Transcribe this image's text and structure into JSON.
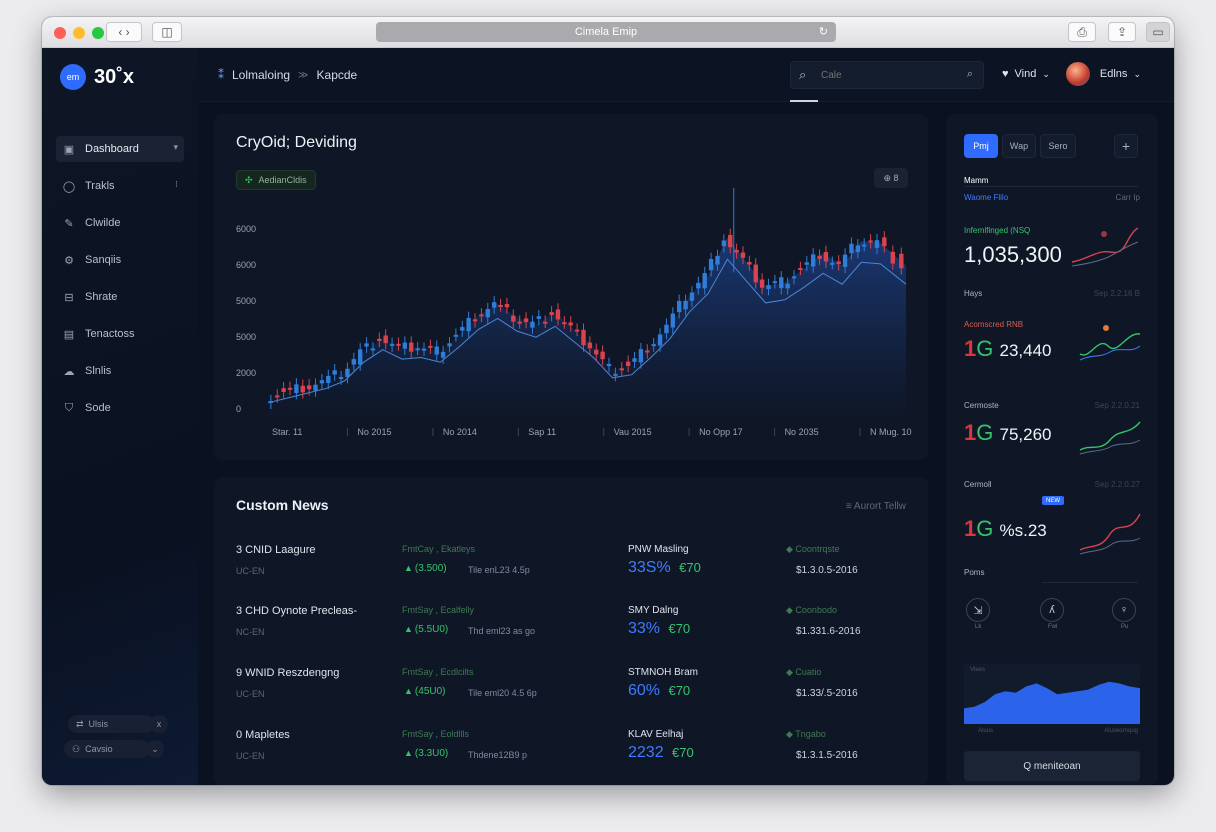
{
  "browser": {
    "url": "Cimela Emip",
    "colors": {
      "red": "#ff5f57",
      "yellow": "#febc2e",
      "green": "#28c840"
    }
  },
  "sidebar": {
    "logo_mark": "em",
    "logo_text": "30˚x",
    "items": [
      {
        "label": "Dashboard",
        "icon": "dashboard-icon",
        "trail": "▾"
      },
      {
        "label": "Trakls",
        "icon": "chat-icon",
        "trail": "⁝"
      },
      {
        "label": "Clwilde",
        "icon": "pen-icon",
        "trail": ""
      },
      {
        "label": "Sanqiis",
        "icon": "gear-icon",
        "trail": ""
      },
      {
        "label": "Shrate",
        "icon": "inbox-icon",
        "trail": ""
      },
      {
        "label": "Tenactoss",
        "icon": "file-icon",
        "trail": ""
      },
      {
        "label": "Slnlis",
        "icon": "cloud-icon",
        "trail": ""
      },
      {
        "label": "Sode",
        "icon": "shield-icon",
        "trail": ""
      }
    ],
    "footer": [
      {
        "label": "Ulsis",
        "icon": "swap-icon",
        "trail": "x"
      },
      {
        "label": "Cavsio",
        "icon": "users-icon",
        "trail": "⌄"
      }
    ]
  },
  "header": {
    "breadcrumb": [
      "Lolmaloing",
      "Kapcde"
    ],
    "search_placeholder": "Cale",
    "notif_label": "Vind",
    "user_name": "Edlns"
  },
  "chart_panel": {
    "title": "CryOid; Deviding",
    "chip_label": "AedianCldis",
    "corner_label": "⊕ 8"
  },
  "chart_data": {
    "type": "line",
    "title": "CryOid; Deviding",
    "yticks": [
      "6000",
      "6000",
      "5000",
      "5000",
      "2000",
      "0"
    ],
    "xticks": [
      "Star. 11",
      "No  2015",
      "No  2014",
      "Sap 11",
      "Vau  2015",
      "No  Opp 17",
      "No  2035",
      "N  Mug. 10"
    ],
    "ylim": [
      0,
      6000
    ],
    "x": [
      0,
      0.03,
      0.06,
      0.09,
      0.12,
      0.15,
      0.18,
      0.21,
      0.24,
      0.27,
      0.3,
      0.33,
      0.36,
      0.39,
      0.42,
      0.45,
      0.48,
      0.51,
      0.54,
      0.57,
      0.6,
      0.63,
      0.66,
      0.69,
      0.72,
      0.75,
      0.78,
      0.81,
      0.84,
      0.87,
      0.9,
      0.93,
      0.96,
      1.0
    ],
    "values": [
      600,
      750,
      900,
      1050,
      1300,
      1900,
      2300,
      2000,
      2050,
      1900,
      2400,
      2950,
      3300,
      2900,
      2700,
      3050,
      2550,
      2050,
      1400,
      1500,
      2050,
      2650,
      3500,
      4100,
      5200,
      4500,
      3800,
      3900,
      4300,
      4750,
      4400,
      5100,
      5050,
      4400
    ],
    "series_area_color": "#1b3a78",
    "up_color": "#2f7dd8",
    "down_color": "#d9434e"
  },
  "news": {
    "title": "Custom News",
    "link": "≡ Aurort Tellw",
    "rows": [
      {
        "name": "3 CNID Laagure",
        "sub": "UC-EN",
        "src": "FmtCay , Ekatleys",
        "chg": "(3.500)",
        "chg_note": "Tile enL23 4.5p",
        "code": "PNW Masling",
        "pct": "33S% ",
        "pct_tail": "€70",
        "status": "◆ Coontrqste",
        "date": "$1.3.0.5-2016"
      },
      {
        "name": "3 CHD Oynote Precleas-",
        "sub": "NC-EN",
        "src": "FmtSay , Ecalfelly",
        "chg": "(5.5U0)",
        "chg_note": "Thd eml23 as go",
        "code": "SMY Dalng",
        "pct": "33% ",
        "pct_tail": "€70",
        "status": "◆ Coonbodo",
        "date": "$1.331.6-2016"
      },
      {
        "name": "9 WNID Reszdengng",
        "sub": "UC-EN",
        "src": "FmtSay , Ecdlcilts",
        "chg": "(45U0)",
        "chg_note": "Tile eml20 4.5 6p",
        "code": "STMNOH Bram",
        "pct": "60% ",
        "pct_tail": "€70",
        "status": "◆ Cuatio",
        "date": "$1.33/.5-2016"
      },
      {
        "name": "0 Mapletes",
        "sub": "UC-EN",
        "src": "FmtSay , Eoldllls",
        "chg": "(3.3U0)",
        "chg_note": "Thdene12B9 p",
        "code": "KLAV Eelhaj",
        "pct": "2232 ",
        "pct_tail": "€70",
        "status": "◆ Tngabo",
        "date": "$1.3.1.5-2016"
      }
    ]
  },
  "right_panel": {
    "tabs": [
      "Pmj",
      "Wap",
      "Sero"
    ],
    "plus": "+",
    "header_left": "Waome Flilo",
    "header_right": "Carr Ip",
    "header_mini": "Mamm",
    "cards": [
      {
        "label": "Infernlfinged (NSQ",
        "value": "1,035,300",
        "sub_left": "Hays",
        "sub_right": "Sep 2.2.16 B"
      },
      {
        "label": "Acomscred RNB",
        "value_prefix": "1",
        "value_mark": "G",
        "value": "23,440",
        "sub_left": "Cermoste",
        "sub_right": "Sep 2.2.0.21"
      },
      {
        "label": "",
        "value_prefix": "1",
        "value_mark": "G",
        "value": "75,260",
        "sub_left": "Cermoll",
        "sub_right": "Sep 2.2.0.27"
      },
      {
        "label": "",
        "value_prefix": "1",
        "value_mark": "G",
        "value": "%s.23",
        "sub_left": "Poms",
        "sub_right": ""
      }
    ],
    "badge": "NEW",
    "icons": [
      {
        "name": "lock-icon",
        "glyph": "⇲",
        "label": "Lk"
      },
      {
        "name": "hand-icon",
        "glyph": "ʎ",
        "label": "Fwl"
      },
      {
        "name": "bell-icon",
        "glyph": "♀",
        "label": "Pu"
      }
    ],
    "mini_chart_label_left": "Vlees",
    "mini_chart_label_bottom_left": "Aluus",
    "mini_chart_label_bottom_right": "Aluseornqug",
    "mini_chart_values": [
      2,
      2.1,
      2.4,
      2.9,
      3.1,
      3.0,
      3.4,
      3.6,
      3.3,
      2.9,
      3.0,
      3.1,
      3.2,
      3.5,
      3.7,
      3.6,
      3.4,
      3.3
    ],
    "button_label": "Q meniteoan"
  }
}
